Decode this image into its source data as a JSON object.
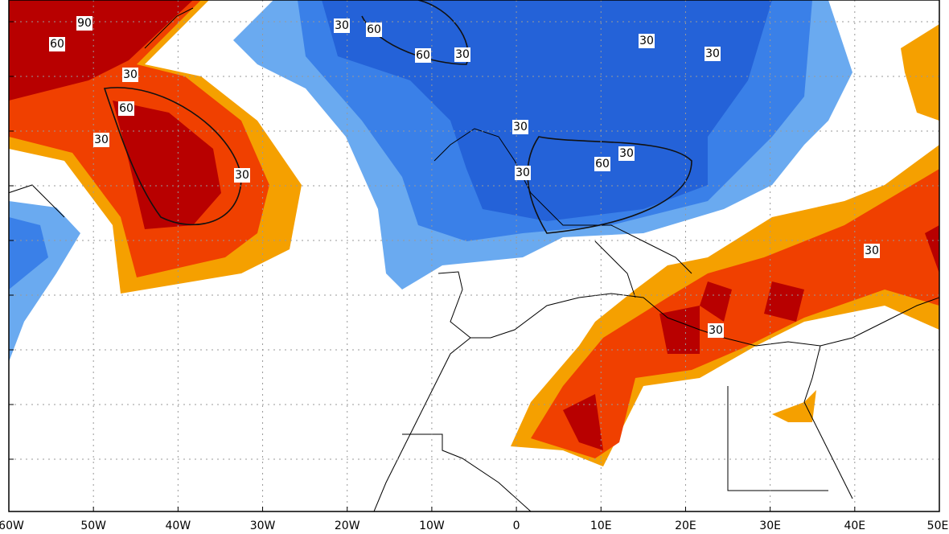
{
  "x_labels": [
    "60W",
    "50W",
    "40W",
    "30W",
    "20W",
    "10W",
    "0",
    "10E",
    "20E",
    "30E",
    "40E",
    "50E"
  ],
  "contour_labels": [
    "90",
    "60",
    "30",
    "60",
    "30",
    "30",
    "30",
    "60",
    "60",
    "30",
    "30",
    "30",
    "30",
    "30",
    "60",
    "30",
    "30",
    "30"
  ]
}
